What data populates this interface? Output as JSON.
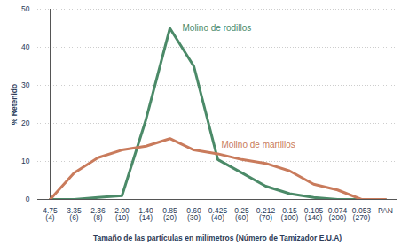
{
  "chart_data": {
    "type": "line",
    "x_label": "Tamaño de las partículas en milímetros (Número de Tamizador E.U.A)",
    "y_label": "% Retenido",
    "categories": [
      "4.75\n(4)",
      "3.35\n(6)",
      "2.36\n(8)",
      "2.00\n(10)",
      "1.40\n(14)",
      "0.85\n(20)",
      "0.60\n(30)",
      "0.425\n(40)",
      "0.25\n(60)",
      "0.212\n(70)",
      "0.15\n(100)",
      "0.105\n(140)",
      "0.074\n(200)",
      "0.053\n(270)",
      "PAN"
    ],
    "series": [
      {
        "name": "Molino de rodillos",
        "color": "#4b8a68",
        "values": [
          0,
          0,
          0.5,
          1,
          21,
          45,
          35,
          10.5,
          7,
          3.5,
          1.5,
          0.5,
          0,
          0,
          0
        ]
      },
      {
        "name": "Molino de martillos",
        "color": "#c97b5c",
        "values": [
          0,
          7,
          11,
          13,
          14,
          16,
          13,
          12,
          10.5,
          9.5,
          7.5,
          4,
          2.5,
          0,
          0
        ]
      }
    ],
    "ylim": [
      0,
      50
    ],
    "yticks": [
      0,
      10,
      20,
      30,
      40,
      50
    ],
    "grid": true
  }
}
